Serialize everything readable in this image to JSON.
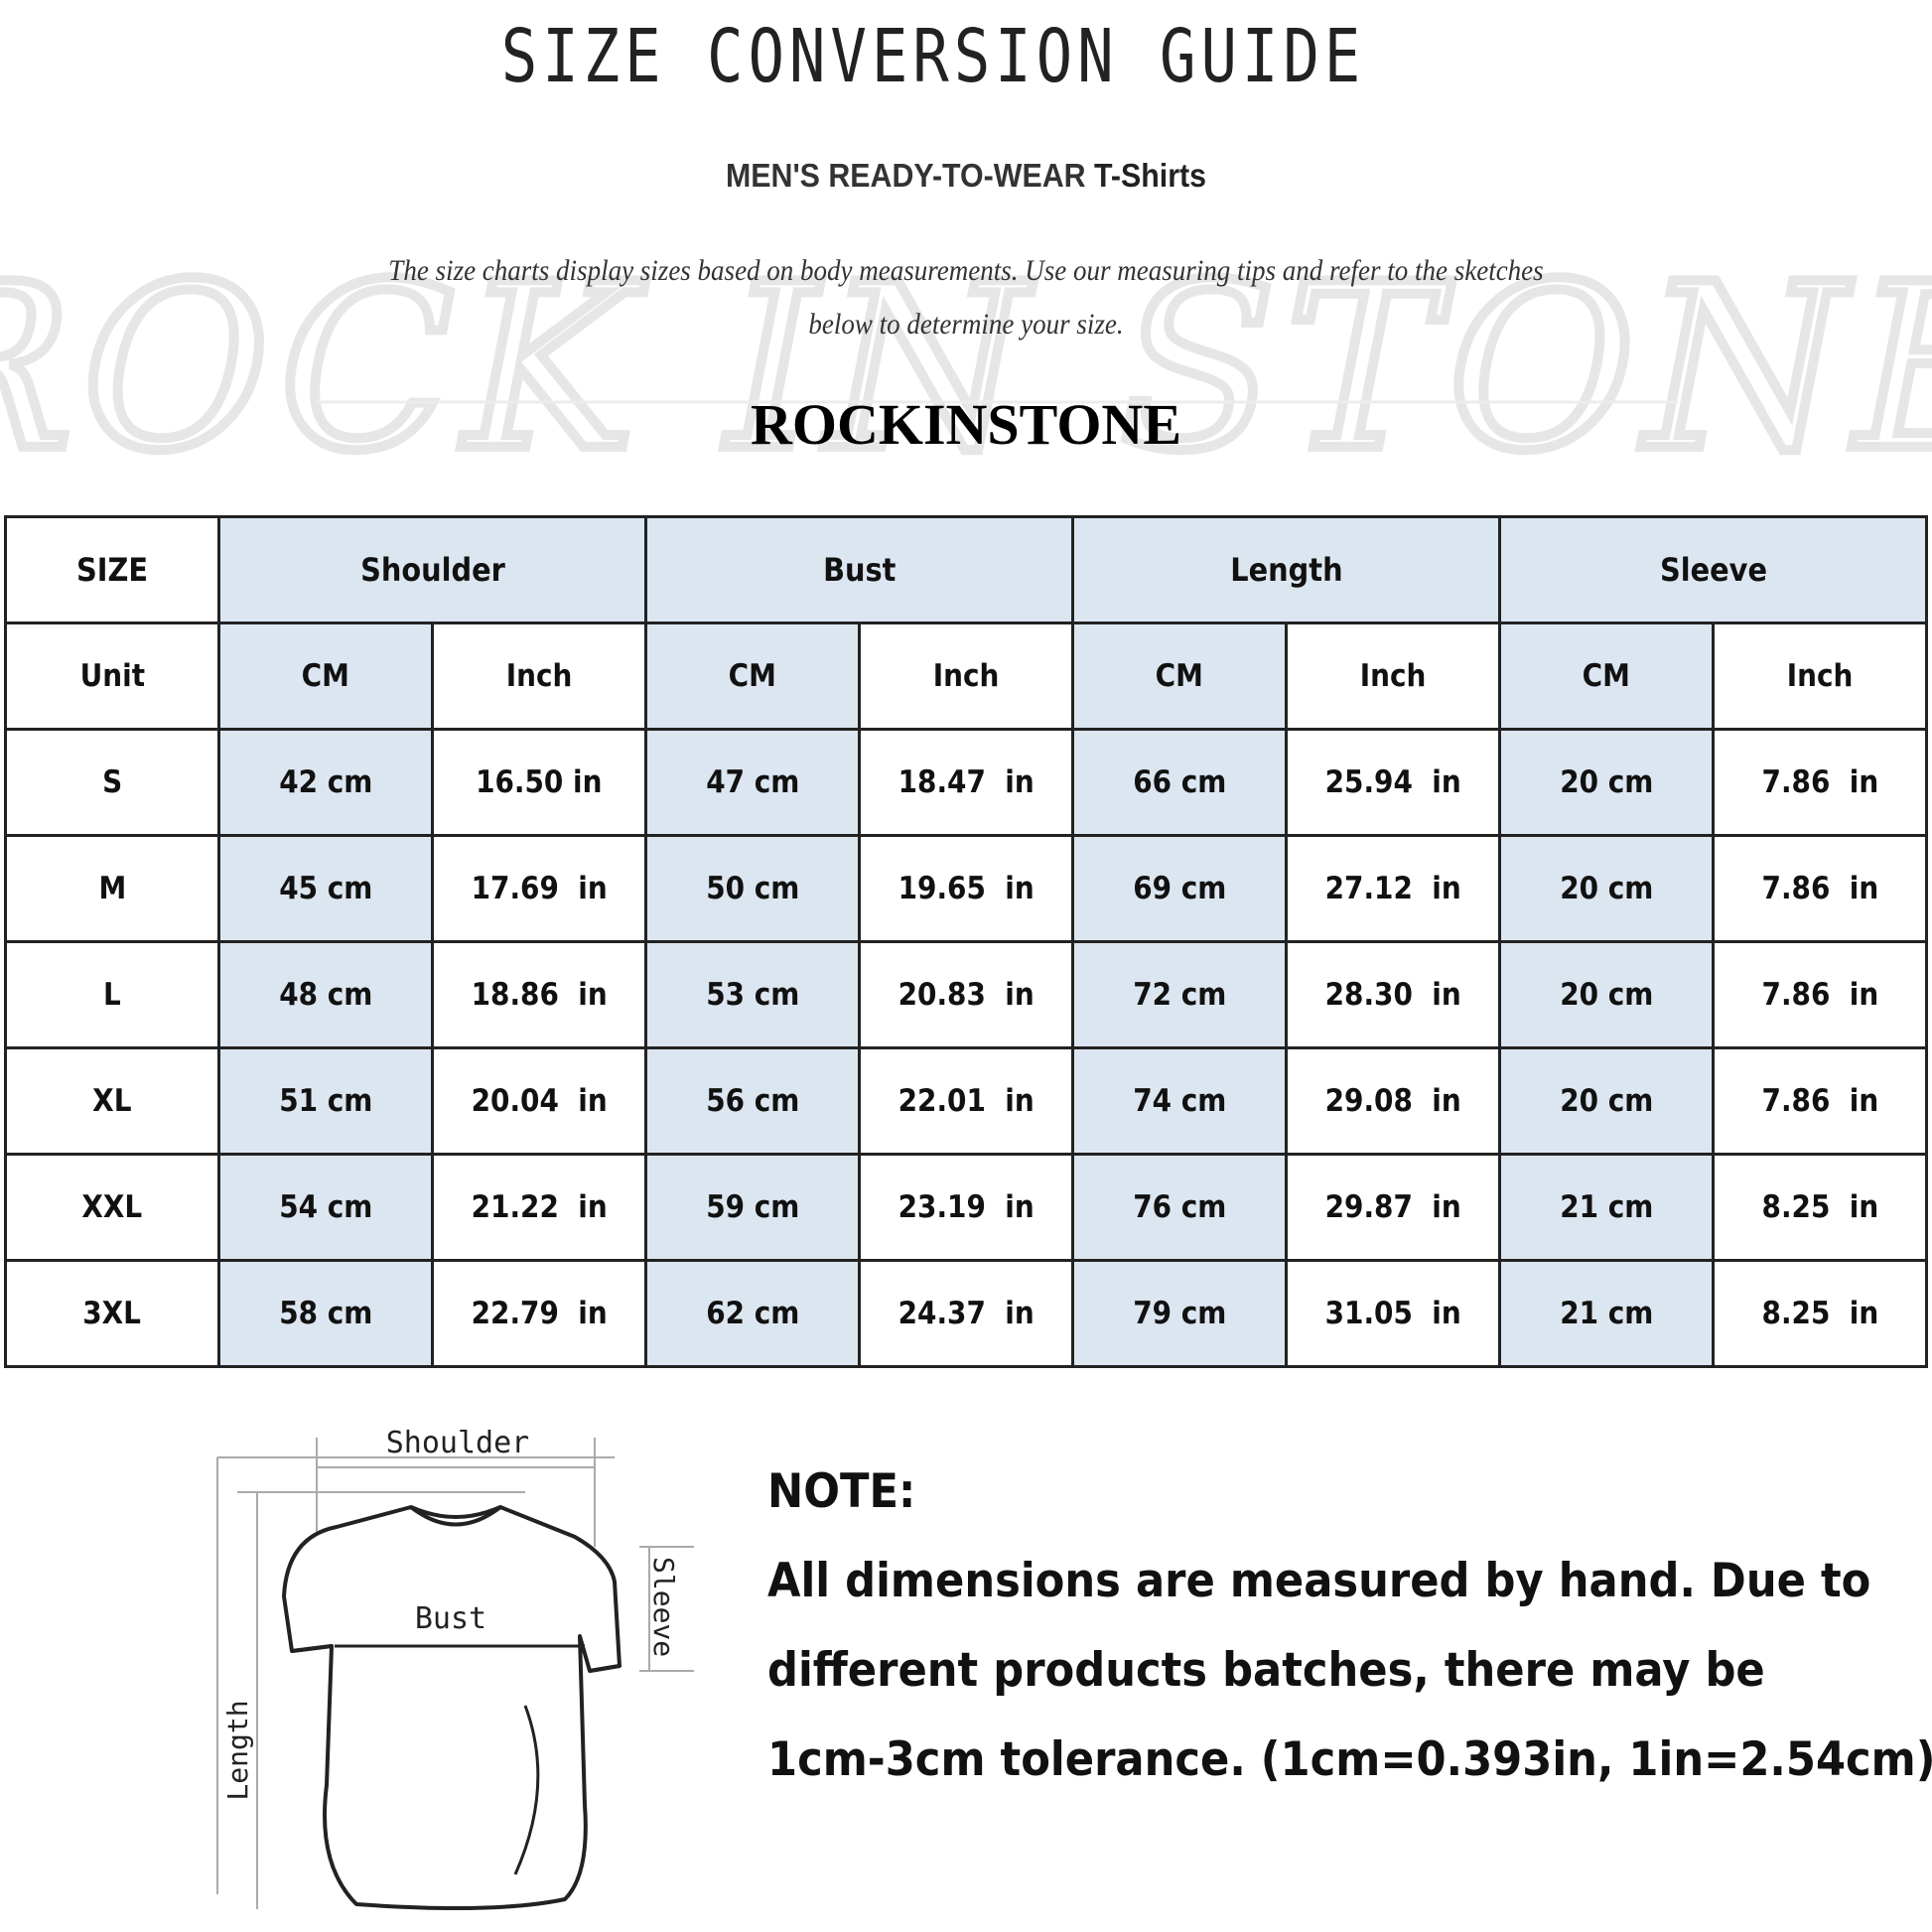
{
  "header": {
    "title": "SIZE CONVERSION GUIDE",
    "subtitle_main": "MEN'S READY-TO-WEAR ",
    "subtitle_product": "T-Shirts",
    "description_line1": "The size charts display sizes based on body measurements. Use our measuring tips and refer to the sketches",
    "description_line2": "below to determine your size.",
    "brand": "ROCKINSTONE",
    "watermark": "Rock In Stone"
  },
  "colors": {
    "header_blue": "#dce6f1",
    "border": "#222222"
  },
  "table": {
    "size_label": "SIZE",
    "groups": [
      "Shoulder",
      "Bust",
      "Length",
      "Sleeve"
    ],
    "unit_label": "Unit",
    "units": [
      "CM",
      "Inch",
      "CM",
      "Inch",
      "CM",
      "Inch",
      "CM",
      "Inch"
    ],
    "rows": [
      {
        "size": "S",
        "values": [
          "42 cm",
          "16.50 in",
          "47 cm",
          "18.47  in",
          "66 cm",
          "25.94  in",
          "20 cm",
          "7.86  in"
        ]
      },
      {
        "size": "M",
        "values": [
          "45 cm",
          "17.69  in",
          "50 cm",
          "19.65  in",
          "69 cm",
          "27.12  in",
          "20 cm",
          "7.86  in"
        ]
      },
      {
        "size": "L",
        "values": [
          "48 cm",
          "18.86  in",
          "53 cm",
          "20.83  in",
          "72 cm",
          "28.30  in",
          "20 cm",
          "7.86  in"
        ]
      },
      {
        "size": "XL",
        "values": [
          "51 cm",
          "20.04  in",
          "56 cm",
          "22.01  in",
          "74 cm",
          "29.08  in",
          "20 cm",
          "7.86  in"
        ]
      },
      {
        "size": "XXL",
        "values": [
          "54 cm",
          "21.22  in",
          "59 cm",
          "23.19  in",
          "76 cm",
          "29.87  in",
          "21 cm",
          "8.25  in"
        ]
      },
      {
        "size": "3XL",
        "values": [
          "58 cm",
          "22.79  in",
          "62 cm",
          "24.37  in",
          "79 cm",
          "31.05  in",
          "21 cm",
          "8.25  in"
        ]
      }
    ]
  },
  "sketch": {
    "shoulder": "Shoulder",
    "bust": "Bust",
    "sleeve": "Sleeve",
    "length": "Length"
  },
  "note": {
    "heading": "NOTE:",
    "line1": "All dimensions are measured by hand. Due to",
    "line2": "different products batches, there may be",
    "line3": "1cm-3cm tolerance. (1cm=0.393in, 1in=2.54cm)"
  }
}
